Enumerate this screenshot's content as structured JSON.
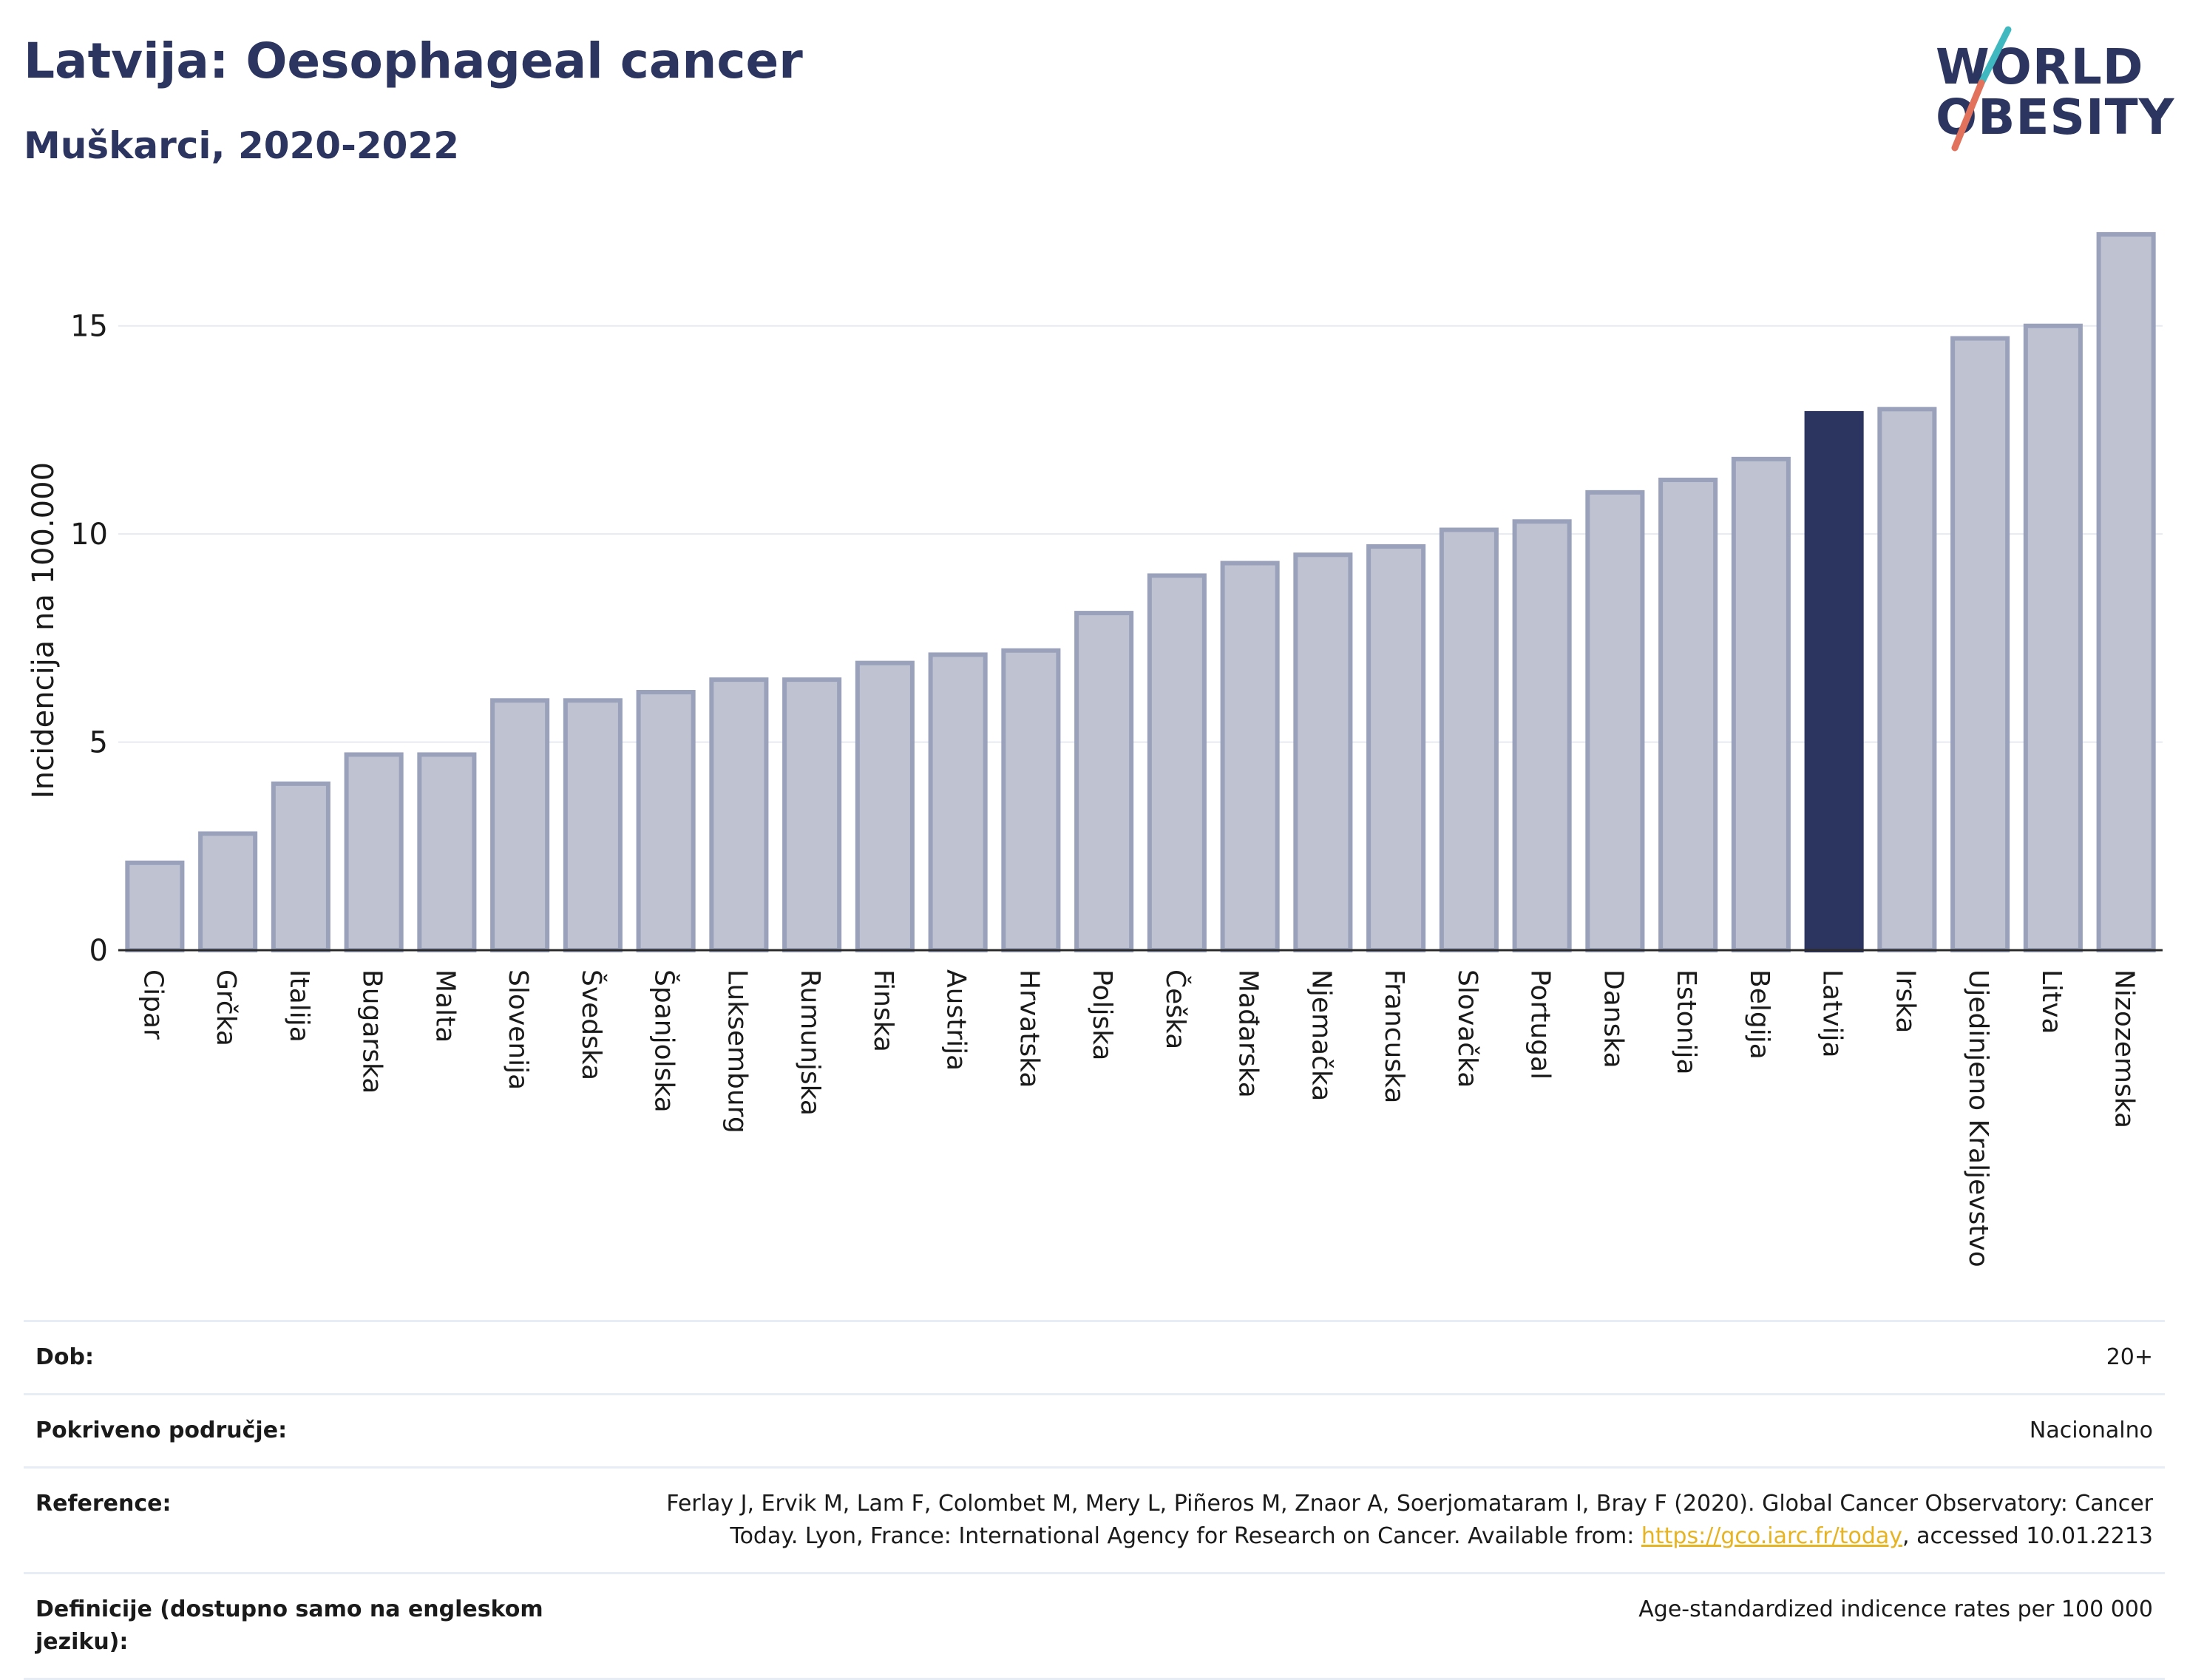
{
  "header": {
    "title": "Latvija: Oesophageal cancer",
    "subtitle": "Muškarci, 2020-2022"
  },
  "logo": {
    "line1": "WORLD",
    "line2": "OBESITY"
  },
  "colors": {
    "bar": "#bfc3d1",
    "bar_border": "#9aa1bb",
    "highlight": "#2b3560",
    "grid": "#e6eaf0",
    "axis": "#2b2b2b",
    "link": "#e6b422",
    "logo_slash_top": "#3fb8c0",
    "logo_slash_bottom": "#e2725b"
  },
  "chart_data": {
    "type": "bar",
    "ylabel": "Incidencija na 100.000",
    "ylim": [
      0,
      17.5
    ],
    "yticks": [
      0,
      5,
      10,
      15
    ],
    "grid": true,
    "highlight": "Latvija",
    "categories": [
      "Cipar",
      "Grčka",
      "Italija",
      "Bugarska",
      "Malta",
      "Slovenija",
      "Švedska",
      "Španjolska",
      "Luksemburg",
      "Rumunjska",
      "Finska",
      "Austrija",
      "Hrvatska",
      "Poljska",
      "Češka",
      "Mađarska",
      "Njemačka",
      "Francuska",
      "Slovačka",
      "Portugal",
      "Danska",
      "Estonija",
      "Belgija",
      "Latvija",
      "Irska",
      "Ujedinjeno Kraljevstvo",
      "Litva",
      "Nizozemska"
    ],
    "values": [
      2.1,
      2.8,
      4.0,
      4.7,
      4.7,
      6.0,
      6.0,
      6.2,
      6.5,
      6.5,
      6.9,
      7.1,
      7.2,
      8.1,
      9.0,
      9.3,
      9.5,
      9.7,
      10.1,
      10.3,
      11.0,
      11.3,
      11.8,
      12.9,
      13.0,
      14.7,
      15.0,
      17.2
    ]
  },
  "info": {
    "rows": [
      {
        "label": "Dob:",
        "value": "20+"
      },
      {
        "label": "Pokriveno područje:",
        "value": "Nacionalno"
      },
      {
        "label": "Reference:",
        "value_before": "Ferlay J, Ervik M, Lam F, Colombet M, Mery L, Piñeros M, Znaor A, Soerjomataram I, Bray F (2020). Global Cancer Observatory: Cancer Today. Lyon, France: International Agency for Research on Cancer. Available from: ",
        "link": "https://gco.iarc.fr/today",
        "value_after": ", accessed 10.01.2213"
      },
      {
        "label": "Definicije (dostupno samo na engleskom jeziku):",
        "value": "Age-standardized indicence rates per 100 000"
      }
    ]
  }
}
